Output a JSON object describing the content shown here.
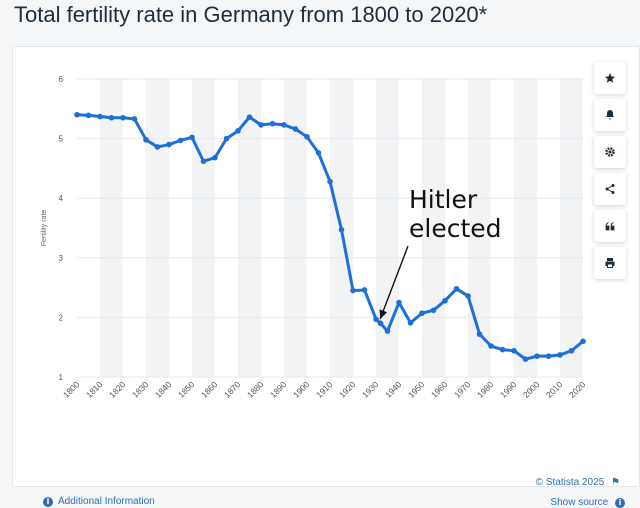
{
  "page_title": "Total fertility rate in Germany from 1800 to 2020*",
  "toolbar": {
    "items": [
      {
        "name": "star-icon"
      },
      {
        "name": "bell-icon"
      },
      {
        "name": "gear-icon"
      },
      {
        "name": "share-icon"
      },
      {
        "name": "quote-icon"
      },
      {
        "name": "print-icon"
      }
    ]
  },
  "footer": {
    "copyright": "© Statista 2025",
    "show_source": "Show source",
    "additional_info": "Additional Information"
  },
  "annotation": {
    "line1": "Hitler",
    "line2": "elected",
    "target_x": 1932,
    "target_y": 1.97
  },
  "colors": {
    "line": "#1e6fd9",
    "link": "#2f6fb0",
    "band": "#f1f3f5"
  },
  "chart_data": {
    "type": "line",
    "title": "",
    "xlabel": "",
    "ylabel": "Fertility rate",
    "xlim": [
      1800,
      2020
    ],
    "ylim": [
      1,
      6
    ],
    "yticks": [
      1,
      2,
      3,
      4,
      5,
      6
    ],
    "xticks": [
      1800,
      1810,
      1820,
      1830,
      1840,
      1850,
      1860,
      1870,
      1880,
      1890,
      1900,
      1910,
      1920,
      1930,
      1940,
      1950,
      1960,
      1970,
      1980,
      1990,
      2000,
      2010,
      2020
    ],
    "series": [
      {
        "x": [
          1800,
          1805,
          1810,
          1815,
          1820,
          1825,
          1830,
          1835,
          1840,
          1845,
          1850,
          1855,
          1860,
          1865,
          1870,
          1875,
          1880,
          1885,
          1890,
          1895,
          1900,
          1905,
          1910,
          1915,
          1920,
          1925,
          1930,
          1932,
          1935,
          1940,
          1945,
          1950,
          1955,
          1960,
          1965,
          1970,
          1975,
          1980,
          1985,
          1990,
          1995,
          2000,
          2005,
          2010,
          2015,
          2020
        ],
        "values": [
          5.4,
          5.39,
          5.37,
          5.35,
          5.35,
          5.33,
          4.98,
          4.86,
          4.9,
          4.97,
          5.02,
          4.62,
          4.68,
          5.0,
          5.13,
          5.36,
          5.23,
          5.25,
          5.23,
          5.16,
          5.03,
          4.76,
          4.28,
          3.47,
          2.45,
          2.46,
          1.97,
          1.9,
          1.77,
          2.25,
          1.91,
          2.07,
          2.12,
          2.28,
          2.48,
          2.36,
          1.72,
          1.52,
          1.46,
          1.44,
          1.3,
          1.35,
          1.35,
          1.37,
          1.44,
          1.6
        ]
      }
    ]
  }
}
